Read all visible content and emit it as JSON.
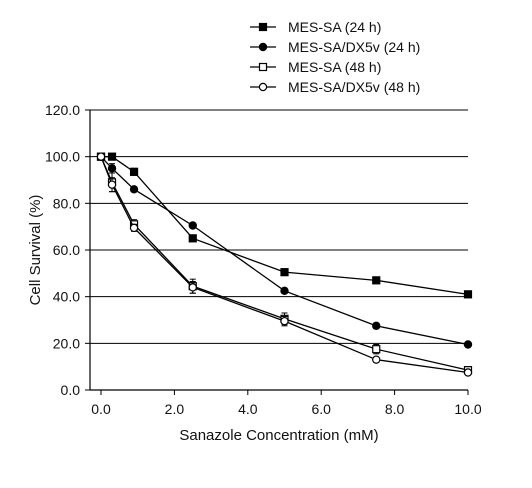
{
  "chart_data": {
    "type": "line",
    "title": "",
    "xlabel": "Sanazole Concentration (mM)",
    "ylabel": "Cell Survival (%)",
    "xlim": [
      -0.3,
      10.0
    ],
    "ylim": [
      0,
      120
    ],
    "x_ticks": [
      "0.0",
      "2.0",
      "4.0",
      "6.0",
      "8.0",
      "10.0"
    ],
    "y_ticks": [
      "0.0",
      "20.0",
      "40.0",
      "60.0",
      "80.0",
      "100.0",
      "120.0"
    ],
    "grid": "horizontal",
    "legend_position": "top-right",
    "series": [
      {
        "name": "MES-SA (24 h)",
        "marker": "filled-square",
        "x": [
          0,
          0.3,
          0.9,
          2.5,
          5.0,
          7.5,
          10.0
        ],
        "y": [
          100,
          100,
          93.5,
          65,
          50.5,
          47,
          41
        ],
        "err": [
          0,
          0,
          1.5,
          1,
          0.8,
          0.8,
          0.8
        ]
      },
      {
        "name": "MES-SA/DX5v (24 h)",
        "marker": "filled-circle",
        "x": [
          0,
          0.3,
          0.9,
          2.5,
          5.0,
          7.5,
          10.0
        ],
        "y": [
          100,
          95,
          86,
          70.5,
          42.5,
          27.5,
          19.5
        ],
        "err": [
          0,
          2,
          1,
          1,
          0.8,
          1.2,
          0.8
        ]
      },
      {
        "name": "MES-SA (48 h)",
        "marker": "open-square",
        "x": [
          0,
          0.3,
          0.9,
          2.5,
          5.0,
          7.5,
          10.0
        ],
        "y": [
          100,
          89,
          71,
          44.5,
          30.5,
          17.5,
          8.5
        ],
        "err": [
          0,
          4,
          2,
          3,
          2.5,
          2,
          1.5
        ]
      },
      {
        "name": "MES-SA/DX5v (48 h)",
        "marker": "open-circle",
        "x": [
          0,
          0.3,
          0.9,
          2.5,
          5.0,
          7.5,
          10.0
        ],
        "y": [
          100,
          88,
          69.5,
          44,
          29.5,
          13,
          7.5
        ],
        "err": [
          0,
          3,
          1.5,
          2.5,
          2,
          1,
          1
        ]
      }
    ]
  }
}
